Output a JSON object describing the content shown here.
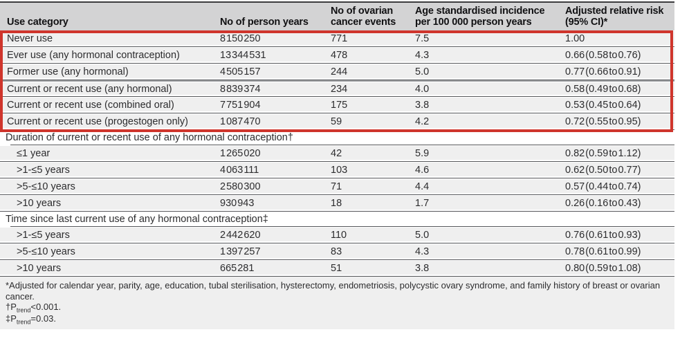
{
  "table": {
    "headers": [
      {
        "id": "use-category",
        "lines": [
          "Use category"
        ]
      },
      {
        "id": "person-years",
        "lines": [
          "No of person years"
        ]
      },
      {
        "id": "cancer-events",
        "lines": [
          "No of ovarian",
          "cancer events"
        ]
      },
      {
        "id": "incidence",
        "lines": [
          "Age standardised incidence",
          "per 100 000 person years"
        ]
      },
      {
        "id": "relative-risk",
        "lines": [
          "Adjusted relative risk",
          "(95% CI)*"
        ]
      }
    ],
    "rows": [
      {
        "type": "data",
        "highlight": true,
        "cells": [
          "Never use",
          "8 150 250",
          "771",
          "7.5",
          "1.00"
        ]
      },
      {
        "type": "data",
        "highlight": true,
        "cells": [
          "Ever use (any hormonal contraception)",
          "13 344 531",
          "478",
          "4.3",
          "0.66 (0.58 to 0.76)"
        ]
      },
      {
        "type": "data",
        "highlight": true,
        "cells": [
          "Former use (any hormonal)",
          "4 505 157",
          "244",
          "5.0",
          "0.77 (0.66 to 0.91)"
        ]
      },
      {
        "type": "data",
        "highlight": true,
        "heavy_top": true,
        "cells": [
          "Current or recent use (any hormonal)",
          "8 839 374",
          "234",
          "4.0",
          "0.58 (0.49 to 0.68)"
        ]
      },
      {
        "type": "data",
        "highlight": true,
        "cells": [
          "Current or recent use (combined oral)",
          "7 751 904",
          "175",
          "3.8",
          "0.53 (0.45 to 0.64)"
        ]
      },
      {
        "type": "data",
        "highlight": true,
        "cells": [
          "Current or recent use (progestogen only)",
          "1 087 470",
          "59",
          "4.2",
          "0.72 (0.55 to 0.95)"
        ]
      },
      {
        "type": "section",
        "label": "Duration of current or recent use of any hormonal contraception†"
      },
      {
        "type": "data",
        "indent": true,
        "cells": [
          "≤1 year",
          "1 265 020",
          "42",
          "5.9",
          "0.82 (0.59 to 1.12)"
        ]
      },
      {
        "type": "data",
        "indent": true,
        "cells": [
          ">1-≤5 years",
          "4 063 111",
          "103",
          "4.6",
          "0.62 (0.50 to 0.77)"
        ]
      },
      {
        "type": "data",
        "indent": true,
        "cells": [
          ">5-≤10 years",
          "2 580 300",
          "71",
          "4.4",
          "0.57 (0.44 to 0.74)"
        ]
      },
      {
        "type": "data",
        "indent": true,
        "cells": [
          ">10 years",
          "930 943",
          "18",
          "1.7",
          "0.26 (0.16 to 0.43)"
        ]
      },
      {
        "type": "section",
        "label": "Time since last current use of any hormonal contraception‡"
      },
      {
        "type": "data",
        "indent": true,
        "cells": [
          ">1-≤5 years",
          "2 442 620",
          "110",
          "5.0",
          "0.76 (0.61 to 0.93)"
        ]
      },
      {
        "type": "data",
        "indent": true,
        "cells": [
          ">5-≤10 years",
          "1 397 257",
          "83",
          "4.3",
          "0.78 (0.61 to 0.99)"
        ]
      },
      {
        "type": "data",
        "indent": true,
        "cells": [
          ">10 years",
          "665 281",
          "51",
          "3.8",
          "0.80 (0.59 to 1.08)"
        ]
      }
    ]
  },
  "footnotes": {
    "adjusted": "*Adjusted for calendar year, parity, age, education, tubal sterilisation, hysterectomy, endometriosis, polycystic ovary syndrome, and family history of breast or ovarian cancer.",
    "dagger": {
      "prefix": "†P",
      "sub": "trend",
      "rest": "<0.001."
    },
    "ddagger": {
      "prefix": "‡P",
      "sub": "trend",
      "rest": "=0.03."
    }
  },
  "highlight": {
    "description": "red annotation box around first six rows",
    "color": "#cf352c"
  },
  "colors": {
    "header_bg": "#d3d3d4",
    "row_bg": "#efefef",
    "rule": "#55565a",
    "top_rule": "#3b3b3d"
  }
}
